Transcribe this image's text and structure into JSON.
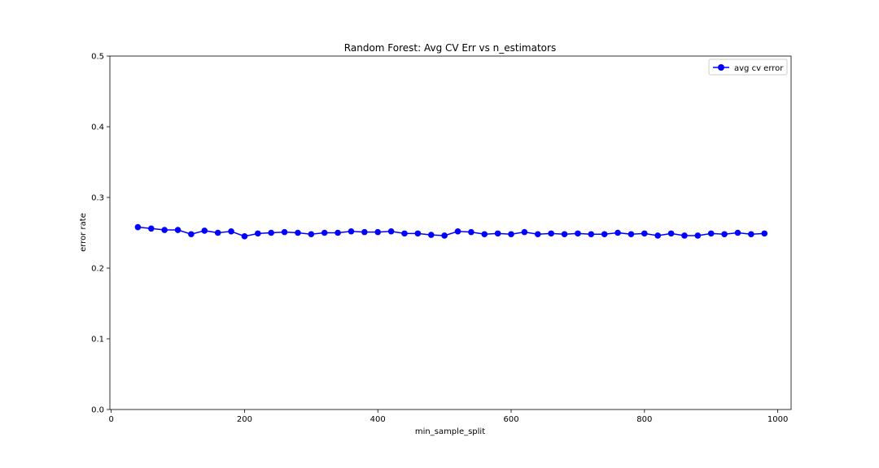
{
  "chart_data": {
    "type": "line",
    "title": "Random Forest: Avg CV Err vs n_estimators",
    "xlabel": "min_sample_split",
    "ylabel": "error rate",
    "xlim": [
      -2,
      1020
    ],
    "ylim": [
      0.0,
      0.5
    ],
    "xticks": [
      0,
      200,
      400,
      600,
      800,
      1000
    ],
    "xtick_labels": [
      "0",
      "200",
      "400",
      "600",
      "800",
      "1000"
    ],
    "yticks": [
      0.0,
      0.1,
      0.2,
      0.3,
      0.4,
      0.5
    ],
    "ytick_labels": [
      "0.0",
      "0.1",
      "0.2",
      "0.3",
      "0.4",
      "0.5"
    ],
    "grid": false,
    "legend_position": "upper right",
    "series": [
      {
        "name": "avg cv error",
        "color": "#0000ff",
        "marker": "circle",
        "x": [
          40,
          60,
          80,
          100,
          120,
          140,
          160,
          180,
          200,
          220,
          240,
          260,
          280,
          300,
          320,
          340,
          360,
          380,
          400,
          420,
          440,
          460,
          480,
          500,
          520,
          540,
          560,
          580,
          600,
          620,
          640,
          660,
          680,
          700,
          720,
          740,
          760,
          780,
          800,
          820,
          840,
          860,
          880,
          900,
          920,
          940,
          960,
          980
        ],
        "y": [
          0.258,
          0.256,
          0.254,
          0.254,
          0.248,
          0.253,
          0.25,
          0.252,
          0.245,
          0.249,
          0.25,
          0.251,
          0.25,
          0.248,
          0.25,
          0.25,
          0.252,
          0.251,
          0.251,
          0.252,
          0.249,
          0.249,
          0.247,
          0.246,
          0.252,
          0.251,
          0.248,
          0.249,
          0.248,
          0.251,
          0.248,
          0.249,
          0.248,
          0.249,
          0.248,
          0.248,
          0.25,
          0.248,
          0.249,
          0.246,
          0.249,
          0.246,
          0.246,
          0.249,
          0.248,
          0.25,
          0.248,
          0.249
        ]
      }
    ]
  }
}
